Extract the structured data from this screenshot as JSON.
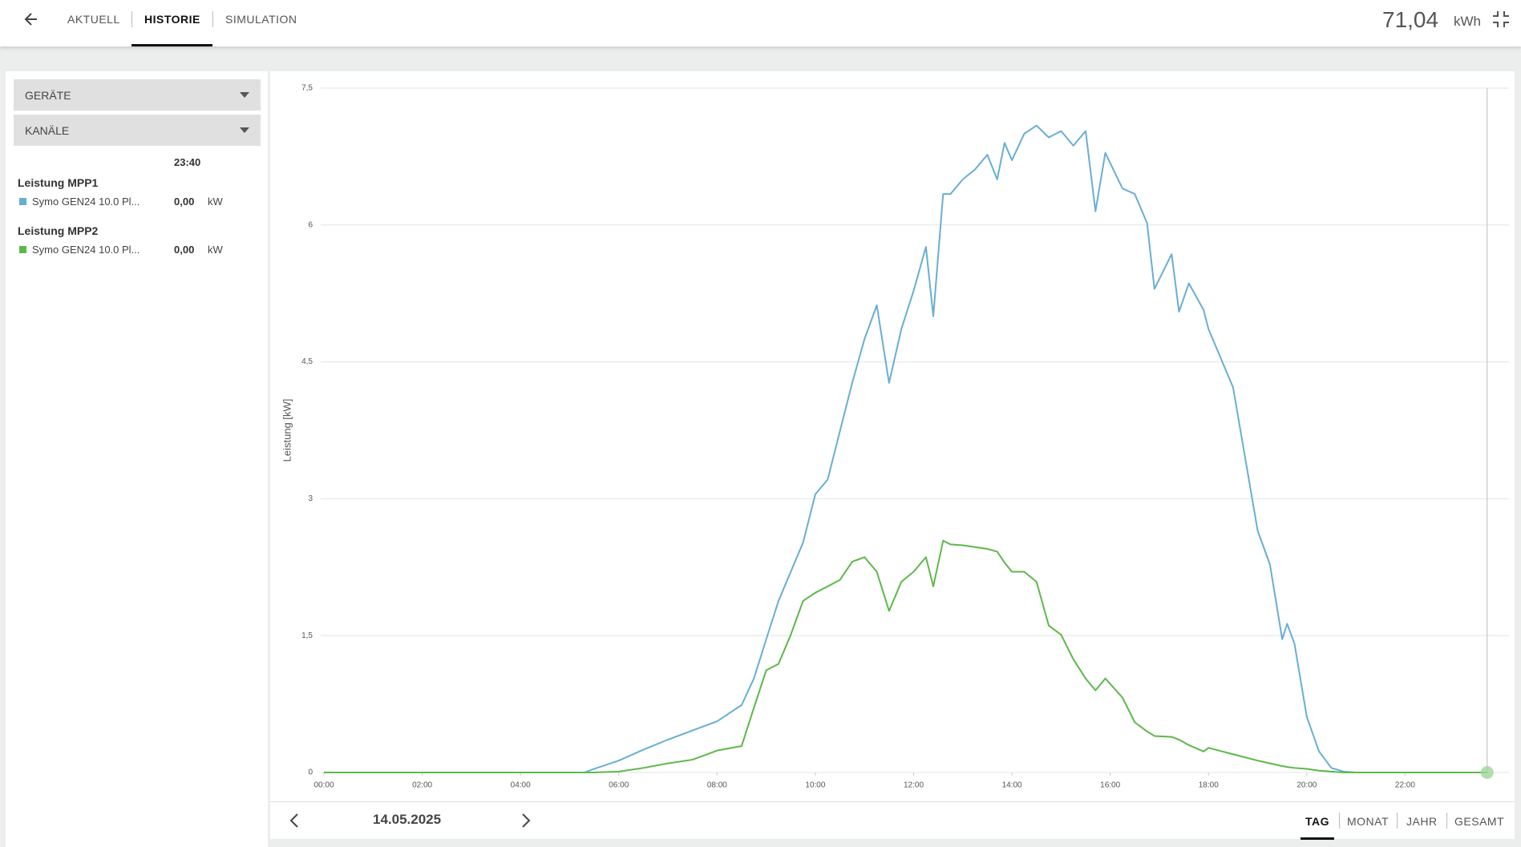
{
  "header": {
    "tabs": [
      "AKTUELL",
      "HISTORIE",
      "SIMULATION"
    ],
    "active_tab": 1,
    "total_value": "71,04",
    "total_unit": "kWh"
  },
  "sidebar": {
    "dropdowns": [
      "GERÄTE",
      "KANÄLE"
    ],
    "time": "23:40",
    "channels": [
      {
        "title": "Leistung MPP1",
        "value": "0,00",
        "unit": "kW"
      },
      {
        "title": "Leistung MPP2",
        "value": "0,00",
        "unit": "kW"
      }
    ]
  },
  "chart_data": {
    "type": "line",
    "y_label": "Leistung [kW]",
    "x": [
      0,
      5.3,
      5.5,
      6,
      6.5,
      7,
      7.5,
      8,
      8.5,
      8.75,
      9,
      9.25,
      9.5,
      9.75,
      10,
      10.25,
      10.5,
      10.75,
      11,
      11.25,
      11.5,
      11.75,
      12,
      12.25,
      12.4,
      12.6,
      12.75,
      13,
      13.25,
      13.5,
      13.7,
      13.85,
      14,
      14.25,
      14.5,
      14.75,
      15,
      15.25,
      15.5,
      15.7,
      15.9,
      16.25,
      16.5,
      16.75,
      16.9,
      17.25,
      17.4,
      17.6,
      17.9,
      18,
      18.5,
      19,
      19.25,
      19.5,
      19.6,
      19.75,
      20,
      20.25,
      20.5,
      20.75,
      21,
      23.67
    ],
    "series": [
      {
        "name": "Symo GEN24 10.0 Pl...",
        "color": "#68aed3",
        "values": [
          0,
          0,
          0.04,
          0.13,
          0.25,
          0.36,
          0.46,
          0.56,
          0.74,
          1.03,
          1.46,
          1.88,
          2.2,
          2.52,
          3.05,
          3.21,
          3.74,
          4.27,
          4.75,
          5.12,
          4.27,
          4.86,
          5.28,
          5.76,
          5.0,
          6.34,
          6.34,
          6.5,
          6.61,
          6.77,
          6.5,
          6.9,
          6.71,
          7.0,
          7.09,
          6.96,
          7.03,
          6.87,
          7.03,
          6.15,
          6.79,
          6.4,
          6.34,
          6.02,
          5.3,
          5.68,
          5.05,
          5.36,
          5.07,
          4.86,
          4.22,
          2.65,
          2.28,
          1.46,
          1.63,
          1.41,
          0.61,
          0.23,
          0.05,
          0.01,
          0,
          0
        ]
      },
      {
        "name": "Symo GEN24 10.0 Pl...",
        "color": "#5cb84a",
        "values": [
          0,
          0,
          0,
          0.01,
          0.05,
          0.1,
          0.14,
          0.24,
          0.29,
          0.71,
          1.12,
          1.19,
          1.51,
          1.88,
          1.97,
          2.04,
          2.11,
          2.31,
          2.36,
          2.2,
          1.77,
          2.09,
          2.2,
          2.36,
          2.04,
          2.54,
          2.5,
          2.49,
          2.47,
          2.45,
          2.42,
          2.3,
          2.2,
          2.2,
          2.09,
          1.61,
          1.51,
          1.24,
          1.03,
          0.9,
          1.03,
          0.82,
          0.55,
          0.45,
          0.4,
          0.39,
          0.36,
          0.3,
          0.23,
          0.27,
          0.2,
          0.13,
          0.1,
          0.07,
          0.06,
          0.05,
          0.04,
          0.02,
          0.01,
          0,
          0,
          0
        ]
      }
    ],
    "xlim": [
      0,
      24
    ],
    "xticks": [
      {
        "value": 0,
        "label": "00:00"
      },
      {
        "value": 2,
        "label": "02:00"
      },
      {
        "value": 4,
        "label": "04:00"
      },
      {
        "value": 6,
        "label": "06:00"
      },
      {
        "value": 8,
        "label": "08:00"
      },
      {
        "value": 10,
        "label": "10:00"
      },
      {
        "value": 12,
        "label": "12:00"
      },
      {
        "value": 14,
        "label": "14:00"
      },
      {
        "value": 16,
        "label": "16:00"
      },
      {
        "value": 18,
        "label": "18:00"
      },
      {
        "value": 20,
        "label": "20:00"
      },
      {
        "value": 22,
        "label": "22:00"
      }
    ],
    "ylim": [
      0,
      7.5
    ],
    "yticks": [
      0,
      {
        "value": 1.5,
        "label": "1,5"
      },
      3,
      {
        "value": 4.5,
        "label": "4,5"
      },
      6,
      {
        "value": 7.5,
        "label": "7,5"
      }
    ],
    "grid": true,
    "cursor_x": 23.67
  },
  "footer": {
    "date": "14.05.2025",
    "periods": [
      "TAG",
      "MONAT",
      "JAHR",
      "GESAMT"
    ],
    "active_period": 0
  }
}
